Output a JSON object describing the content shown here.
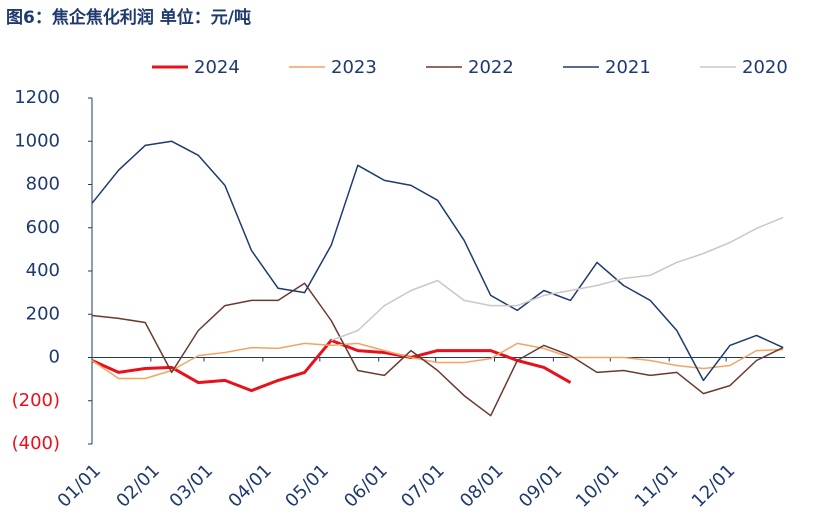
{
  "chart_data": {
    "type": "line",
    "title": "图6：焦企焦化利润  单位：元/吨",
    "x": [
      0,
      14,
      28,
      42,
      56,
      70,
      84,
      98,
      112,
      126,
      140,
      154,
      168,
      182,
      196,
      210,
      224,
      238,
      252,
      266,
      280,
      294,
      308,
      322,
      336,
      350,
      364
    ],
    "xlim": [
      0,
      365
    ],
    "xticks": [
      {
        "value": 0,
        "label": "01/01"
      },
      {
        "value": 31,
        "label": "02/01"
      },
      {
        "value": 59,
        "label": "03/01"
      },
      {
        "value": 90,
        "label": "04/01"
      },
      {
        "value": 120,
        "label": "05/01"
      },
      {
        "value": 151,
        "label": "06/01"
      },
      {
        "value": 181,
        "label": "07/01"
      },
      {
        "value": 212,
        "label": "08/01"
      },
      {
        "value": 243,
        "label": "09/01"
      },
      {
        "value": 273,
        "label": "10/01"
      },
      {
        "value": 304,
        "label": "11/01"
      },
      {
        "value": 334,
        "label": "12/01"
      }
    ],
    "ylim": [
      -400,
      1200
    ],
    "yticks": [
      {
        "value": -400,
        "label": "(400)"
      },
      {
        "value": -200,
        "label": "(200)"
      },
      0,
      200,
      400,
      600,
      800,
      1000,
      1200
    ],
    "series": [
      {
        "name": "2024",
        "color": "#e8101a",
        "width": 3,
        "values": [
          -14,
          -69,
          -51,
          -46,
          -116,
          -106,
          -153,
          -106,
          -69,
          79,
          32,
          23,
          0,
          32,
          32,
          32,
          -14,
          -46,
          -116,
          null,
          null,
          null,
          null,
          null,
          null,
          null,
          null
        ]
      },
      {
        "name": "2023",
        "color": "#f4a460",
        "width": 1.5,
        "values": [
          -14,
          -97,
          -97,
          -60,
          9,
          23,
          46,
          42,
          65,
          56,
          65,
          32,
          0,
          -23,
          -23,
          -5,
          65,
          42,
          0,
          0,
          0,
          -14,
          -37,
          -51,
          -37,
          32,
          37
        ]
      },
      {
        "name": "2022",
        "color": "#6b3a2e",
        "width": 1.5,
        "values": [
          194,
          181,
          162,
          -69,
          125,
          240,
          264,
          264,
          343,
          171,
          -60,
          -83,
          32,
          -60,
          -176,
          -269,
          -14,
          56,
          9,
          -69,
          -60,
          -83,
          -69,
          -167,
          -130,
          -14,
          46
        ]
      },
      {
        "name": "2021",
        "color": "#1f3a6e",
        "width": 1.5,
        "values": [
          713,
          866,
          981,
          1000,
          935,
          796,
          495,
          320,
          300,
          519,
          889,
          819,
          796,
          727,
          542,
          287,
          218,
          310,
          264,
          440,
          333,
          264,
          125,
          -106,
          56,
          102,
          46
        ]
      },
      {
        "name": "2020",
        "color": "#c8c8c8",
        "width": 1.5,
        "values": [
          null,
          null,
          null,
          null,
          null,
          null,
          null,
          null,
          null,
          79,
          125,
          240,
          310,
          356,
          264,
          240,
          240,
          287,
          310,
          333,
          366,
          380,
          440,
          481,
          532,
          597,
          648
        ]
      }
    ]
  }
}
